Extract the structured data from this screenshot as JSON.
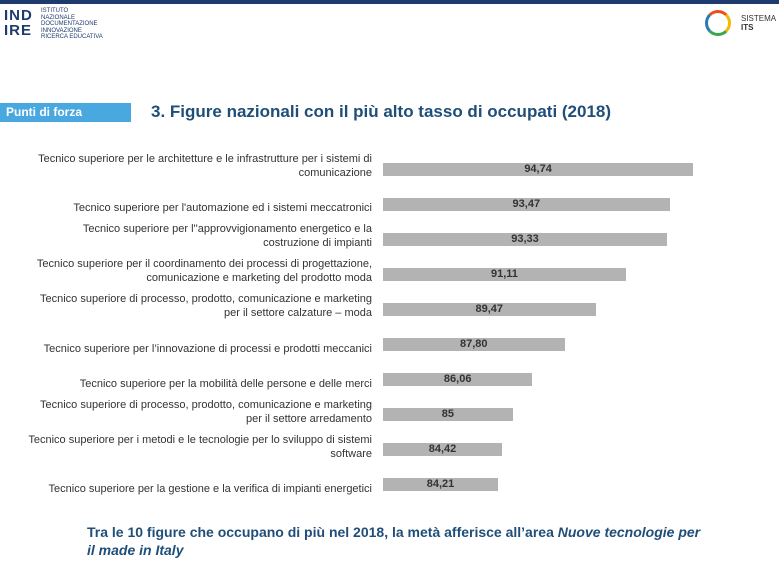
{
  "header": {
    "logo": "IND IRE",
    "institute": "ISTITUTO NAZIONALE DOCUMENTAZIONE INNOVAZIONE RICERCA EDUCATIVA",
    "brand_small": "SISTEMA",
    "brand": "ITS"
  },
  "section_tag": "Punti di forza",
  "chart_data": {
    "type": "bar",
    "orientation": "horizontal",
    "title": "3. Figure nazionali con il più alto tasso di occupati (2018)",
    "categories": [
      "Tecnico superiore per le architetture e le infrastrutture per i sistemi di comunicazione",
      "Tecnico superiore per l'automazione ed i sistemi meccatronici",
      "Tecnico superiore per l''approvvigionamento energetico e la costruzione di impianti",
      "Tecnico superiore per il coordinamento dei processi di progettazione, comunicazione e marketing del prodotto moda",
      "Tecnico superiore di processo, prodotto, comunicazione e marketing per il settore calzature – moda",
      "Tecnico superiore per l’innovazione di processi e prodotti meccanici",
      "Tecnico superiore per la mobilità delle persone e delle merci",
      "Tecnico superiore di processo, prodotto, comunicazione e marketing per il settore arredamento",
      "Tecnico superiore per i metodi e le tecnologie per lo sviluppo di sistemi software",
      "Tecnico superiore per la gestione e la verifica di impianti energetici"
    ],
    "values": [
      94.74,
      93.47,
      93.33,
      91.11,
      89.47,
      87.8,
      86.06,
      85,
      84.42,
      84.21
    ],
    "value_labels": [
      "94,74",
      "93,47",
      "93,33",
      "91,11",
      "89,47",
      "87,80",
      "86,06",
      "85",
      "84,42",
      "84,21"
    ],
    "color": "#b3b3b3",
    "xlim": [
      78,
      95
    ]
  },
  "footer": {
    "text": "Tra le 10 figure che occupano di più nel 2018, la metà afferisce all’area ",
    "emphasis": "Nuove tecnologie per il made in Italy"
  }
}
